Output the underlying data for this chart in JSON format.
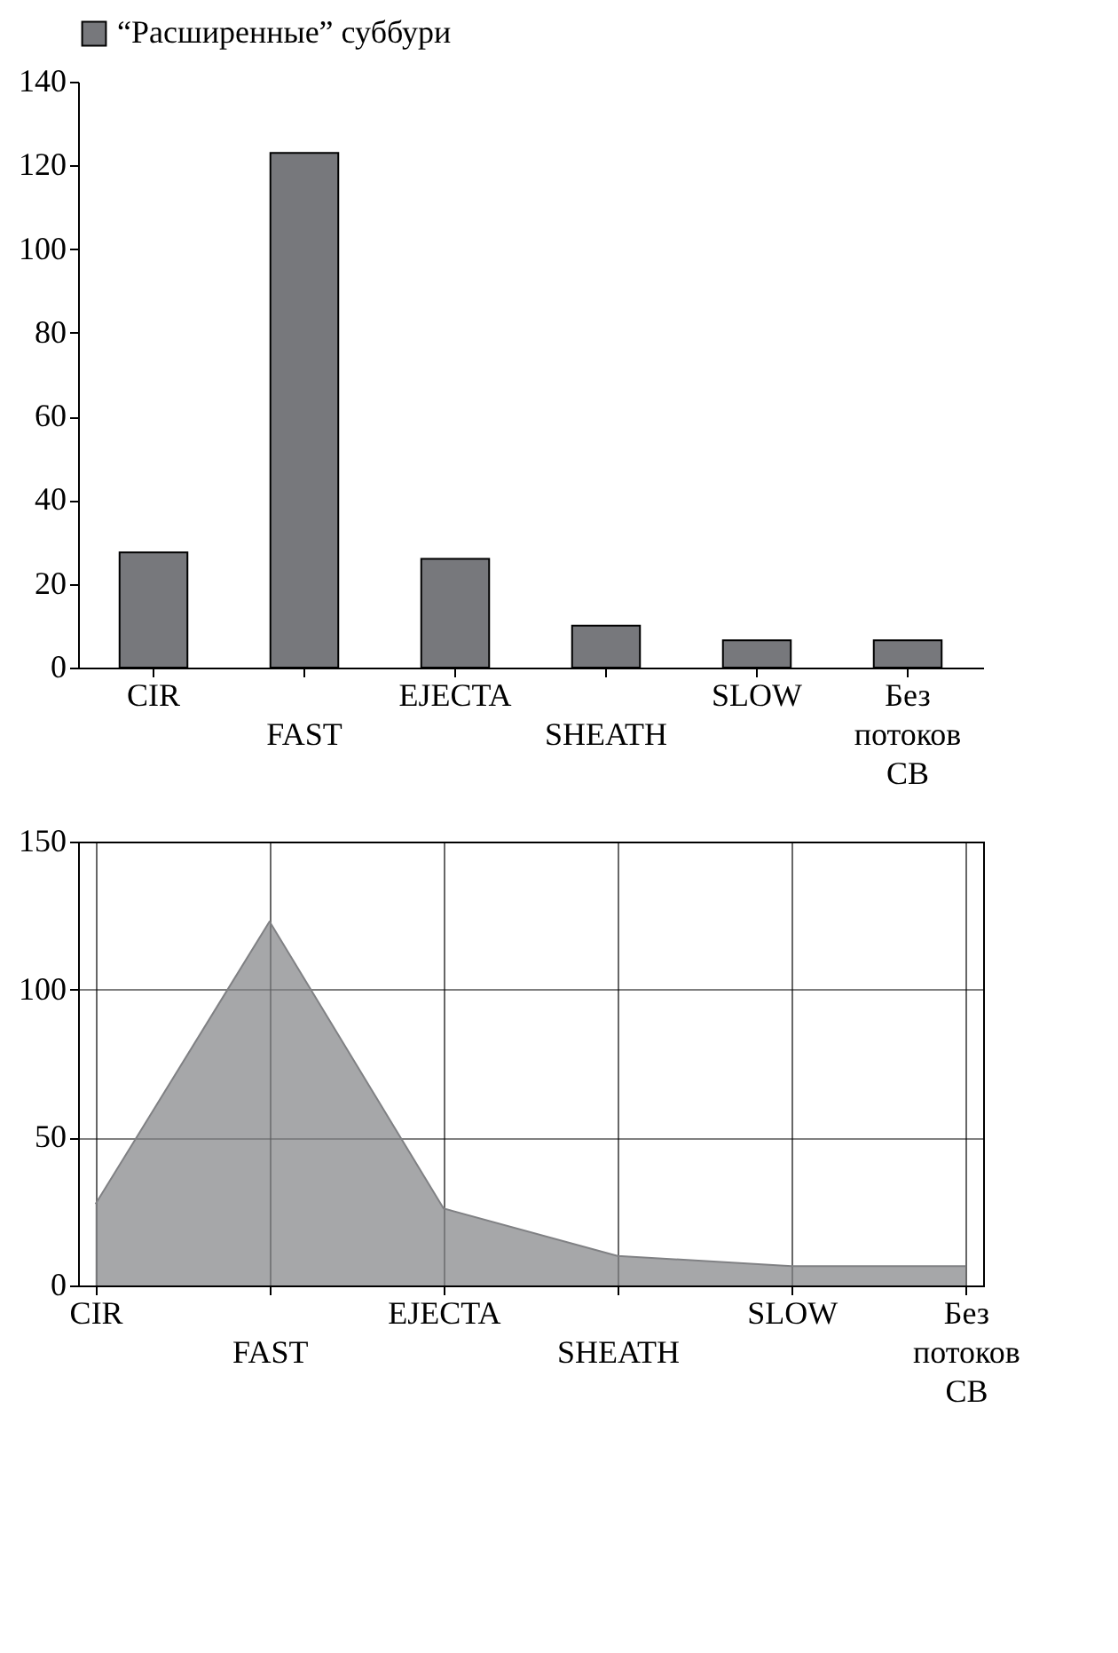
{
  "chart_data": [
    {
      "type": "bar",
      "categories": [
        "CIR",
        "FAST",
        "EJECTA",
        "SHEATH",
        "SLOW",
        "Без потоков СВ"
      ],
      "series": [
        {
          "name": "“Расширенные” суббури",
          "color": "#77787c",
          "values": [
            27.5,
            123,
            26,
            10,
            6.5,
            6.5
          ]
        }
      ],
      "ylim": [
        0,
        140
      ],
      "yticks": [
        0,
        20,
        40,
        60,
        80,
        100,
        120,
        140
      ],
      "legend": "top"
    },
    {
      "type": "area",
      "categories": [
        "CIR",
        "FAST",
        "EJECTA",
        "SHEATH",
        "SLOW",
        "Без потоков СВ"
      ],
      "series": [
        {
          "color": "#808184",
          "values": [
            27.5,
            123,
            26,
            10,
            6.5,
            6.5
          ]
        }
      ],
      "ylim": [
        0,
        150
      ],
      "yticks": [
        0,
        50,
        100,
        150
      ],
      "grid": true
    }
  ]
}
